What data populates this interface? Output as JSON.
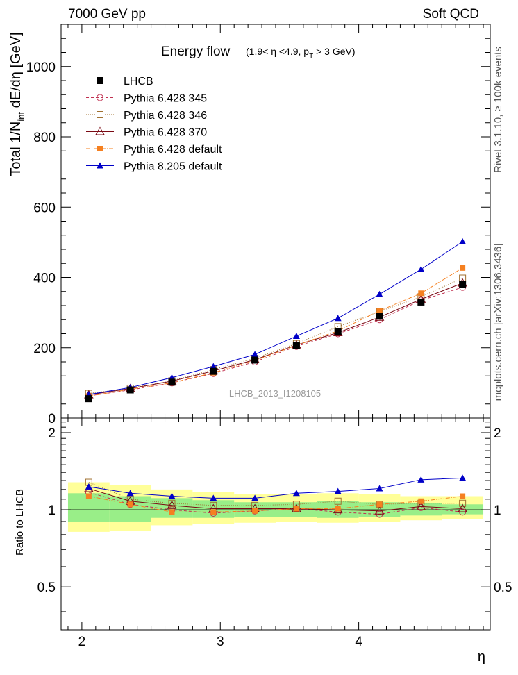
{
  "header": {
    "left": "7000 GeV pp",
    "right": "Soft QCD"
  },
  "side_labels": {
    "rivet": "Rivet 3.1.10, ≥ 100k events",
    "mcplots": "mcplots.cern.ch [arXiv:1306.3436]"
  },
  "title": {
    "main": "Energy flow",
    "sub": "(1.9< η <4.9, p",
    "sub_subscript": "T",
    "sub_end": " > 3 GeV)"
  },
  "analysis_tag": "LHCB_2013_I1208105",
  "chart_data": {
    "type": "line",
    "x": [
      2.05,
      2.35,
      2.65,
      2.95,
      3.25,
      3.55,
      3.85,
      4.15,
      4.45,
      4.75
    ],
    "main_panel": {
      "ylabel": "Total 1/N_int dE/dη [GeV]",
      "ylabel_parts": [
        "Total 1/N",
        "int",
        " dE/dη [GeV]"
      ],
      "ylim": [
        0,
        1120
      ],
      "yticks": [
        0,
        200,
        400,
        600,
        800,
        1000
      ],
      "series": [
        {
          "name": "LHCB",
          "color": "#000000",
          "marker": "filled-square",
          "line": "none",
          "values": [
            55,
            80,
            102,
            133,
            165,
            206,
            245,
            290,
            330,
            380
          ]
        },
        {
          "name": "Pythia 6.428 345",
          "color": "#c03050",
          "marker": "open-circle",
          "line": "dashed",
          "values": [
            63,
            80,
            100,
            127,
            160,
            204,
            240,
            280,
            335,
            372
          ]
        },
        {
          "name": "Pythia 6.428 346",
          "color": "#a07030",
          "marker": "open-square",
          "line": "dotted",
          "values": [
            70,
            85,
            106,
            138,
            170,
            212,
            260,
            303,
            345,
            398
          ]
        },
        {
          "name": "Pythia 6.428 370",
          "color": "#7a0a14",
          "marker": "open-triangle",
          "line": "solid",
          "values": [
            66,
            84,
            105,
            134,
            166,
            208,
            243,
            287,
            338,
            384
          ]
        },
        {
          "name": "Pythia 6.428 default",
          "color": "#f58020",
          "marker": "filled-square-small",
          "line": "dashdot",
          "values": [
            62,
            82,
            100,
            129,
            164,
            207,
            248,
            305,
            355,
            427
          ]
        },
        {
          "name": "Pythia 8.205 default",
          "color": "#0000c8",
          "marker": "filled-triangle",
          "line": "solid",
          "values": [
            67,
            87,
            115,
            147,
            181,
            233,
            284,
            352,
            423,
            502
          ]
        }
      ]
    },
    "ratio_panel": {
      "ylabel": "Ratio to LHCB",
      "ylim": [
        0.34,
        2.28
      ],
      "yticks": [
        0.5,
        1,
        2
      ],
      "ytick_labels": [
        "0.5",
        "1",
        "2"
      ],
      "band_1sigma": {
        "lo": [
          0.9,
          0.9,
          0.93,
          0.93,
          0.94,
          0.94,
          0.93,
          0.94,
          0.95,
          0.96
        ],
        "hi": [
          1.16,
          1.13,
          1.11,
          1.09,
          1.07,
          1.07,
          1.08,
          1.07,
          1.06,
          1.05
        ]
      },
      "band_2sigma": {
        "lo": [
          0.82,
          0.83,
          0.87,
          0.88,
          0.89,
          0.9,
          0.89,
          0.9,
          0.91,
          0.92
        ],
        "hi": [
          1.28,
          1.25,
          1.2,
          1.17,
          1.15,
          1.15,
          1.16,
          1.15,
          1.13,
          1.13
        ]
      },
      "series": [
        {
          "name": "Pythia 6.428 345",
          "values": [
            1.17,
            1.05,
            1.0,
            0.97,
            0.99,
            1.01,
            0.98,
            0.96,
            1.02,
            0.98
          ]
        },
        {
          "name": "Pythia 6.428 346",
          "values": [
            1.28,
            1.1,
            1.06,
            1.04,
            1.04,
            1.05,
            1.08,
            1.05,
            1.06,
            1.06
          ]
        },
        {
          "name": "Pythia 6.428 370",
          "values": [
            1.21,
            1.08,
            1.04,
            1.01,
            1.01,
            1.01,
            1.0,
            0.99,
            1.03,
            1.01
          ]
        },
        {
          "name": "Pythia 6.428 default",
          "values": [
            1.13,
            1.05,
            0.98,
            0.98,
            0.99,
            1.01,
            1.01,
            1.05,
            1.08,
            1.13
          ]
        },
        {
          "name": "Pythia 8.205 default",
          "values": [
            1.23,
            1.16,
            1.13,
            1.11,
            1.11,
            1.16,
            1.18,
            1.21,
            1.31,
            1.33
          ]
        }
      ]
    },
    "xlabel": "η",
    "xlim": [
      1.85,
      4.95
    ],
    "xticks": [
      2,
      3,
      4
    ],
    "xtick_labels": [
      "2",
      "3",
      "4"
    ]
  }
}
